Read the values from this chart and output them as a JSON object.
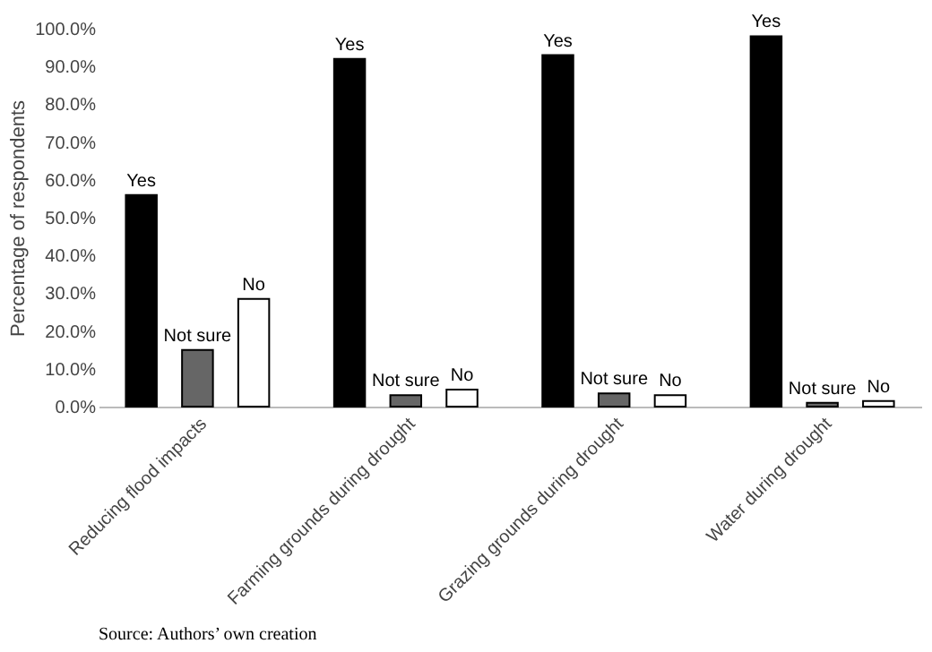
{
  "chart_data": {
    "type": "bar",
    "ylabel": "Percentage of respondents",
    "categories": [
      "Reducing flood impacts",
      "Farming grounds during drought",
      "Grazing grounds during drought",
      "Water during drought"
    ],
    "series": [
      {
        "name": "Yes",
        "color": "#000000",
        "values": [
          56,
          92,
          93,
          98
        ]
      },
      {
        "name": "Not sure",
        "color": "#666666",
        "values": [
          15,
          3,
          3.5,
          1
        ]
      },
      {
        "name": "No",
        "color": "#ffffff",
        "values": [
          28.5,
          4.5,
          3,
          1.5
        ]
      }
    ],
    "ylim": [
      0,
      100
    ],
    "yticks": [
      {
        "value": 0,
        "label": "0.0%"
      },
      {
        "value": 10,
        "label": "10.0%"
      },
      {
        "value": 20,
        "label": "20.0%"
      },
      {
        "value": 30,
        "label": "30.0%"
      },
      {
        "value": 40,
        "label": "40.0%"
      },
      {
        "value": 50,
        "label": "50.0%"
      },
      {
        "value": 60,
        "label": "60.0%"
      },
      {
        "value": 70,
        "label": "70.0%"
      },
      {
        "value": 80,
        "label": "80.0%"
      },
      {
        "value": 90,
        "label": "90.0%"
      },
      {
        "value": 100,
        "label": "100.0%"
      }
    ],
    "grid": false,
    "legend": false,
    "annotations": [
      "Source: Authors’ own creation"
    ]
  }
}
